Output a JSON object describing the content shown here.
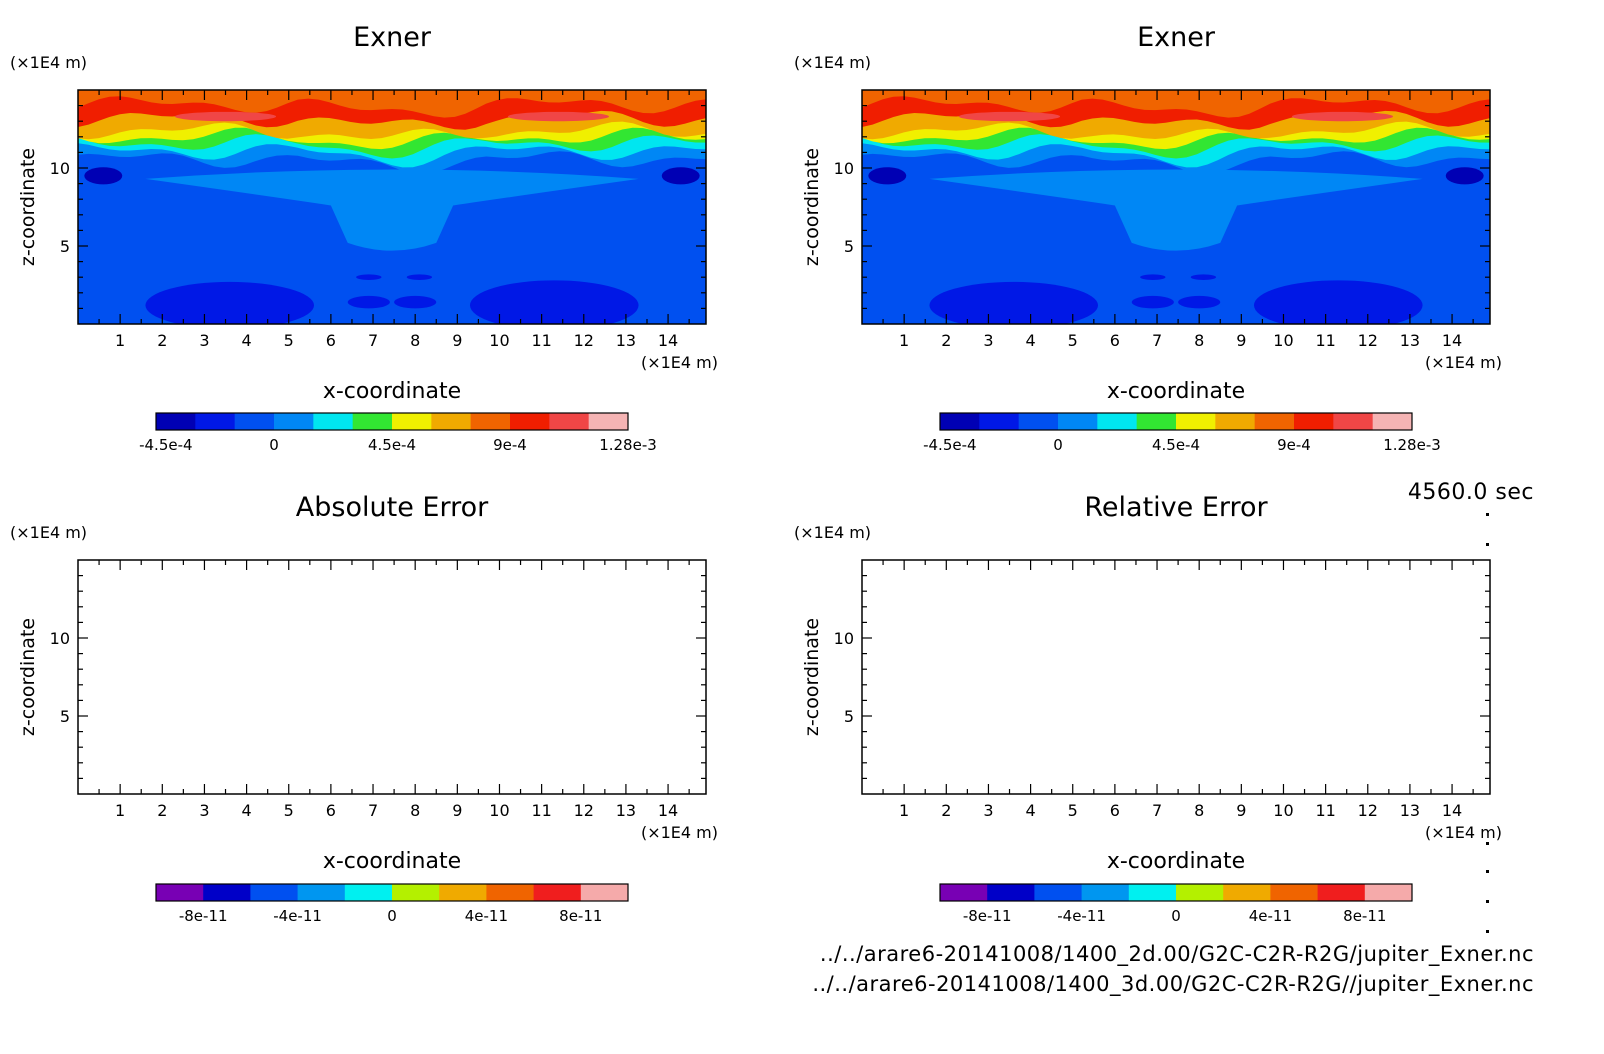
{
  "time_label": "4560.0 sec",
  "footer": {
    "line1": "../../arare6-20141008/1400_2d.00/G2C-C2R-R2G/jupiter_Exner.nc",
    "line2": "../../arare6-20141008/1400_3d.00/G2C-C2R-R2G//jupiter_Exner.nc"
  },
  "chart_data": [
    {
      "type": "heatmap",
      "title": "Exner",
      "xlabel": "x-coordinate",
      "ylabel": "z-coordinate",
      "x_unit": "(×1E4 m)",
      "y_unit": "(×1E4 m)",
      "xlim": [
        0,
        14.9
      ],
      "ylim": [
        0,
        15
      ],
      "xticks": [
        "1",
        "2",
        "3",
        "4",
        "5",
        "6",
        "7",
        "8",
        "9",
        "10",
        "11",
        "12",
        "13",
        "14"
      ],
      "yticks": [
        "5",
        "10"
      ],
      "colorbar": {
        "colors": [
          "#0000b4",
          "#0018e6",
          "#0050f0",
          "#0087f5",
          "#00e6f0",
          "#32e632",
          "#f0f000",
          "#f0aa00",
          "#f06400",
          "#f01e00",
          "#f04646",
          "#f5b4b4"
        ],
        "tick_labels": [
          "-4.5e-4",
          "0",
          "4.5e-4",
          "9e-4",
          "1.28e-3"
        ]
      },
      "contour_levels_approx": [
        {
          "z": 14.2,
          "color": "#f06400"
        },
        {
          "z": 13.0,
          "color": "#f01e00"
        },
        {
          "z": 12.2,
          "color": "#f0aa00"
        },
        {
          "z": 11.6,
          "color": "#f0f000"
        },
        {
          "z": 11.0,
          "color": "#32e632"
        },
        {
          "z": 10.4,
          "color": "#00e6f0"
        },
        {
          "z": 9.5,
          "color": "#0087f5"
        },
        {
          "z": 0,
          "color": "#0050f0"
        }
      ]
    },
    {
      "type": "heatmap",
      "title": "Exner",
      "xlabel": "x-coordinate",
      "ylabel": "z-coordinate",
      "x_unit": "(×1E4 m)",
      "y_unit": "(×1E4 m)",
      "xlim": [
        0,
        14.9
      ],
      "ylim": [
        0,
        15
      ],
      "xticks": [
        "1",
        "2",
        "3",
        "4",
        "5",
        "6",
        "7",
        "8",
        "9",
        "10",
        "11",
        "12",
        "13",
        "14"
      ],
      "yticks": [
        "5",
        "10"
      ],
      "colorbar": {
        "colors": [
          "#0000b4",
          "#0018e6",
          "#0050f0",
          "#0087f5",
          "#00e6f0",
          "#32e632",
          "#f0f000",
          "#f0aa00",
          "#f06400",
          "#f01e00",
          "#f04646",
          "#f5b4b4"
        ],
        "tick_labels": [
          "-4.5e-4",
          "0",
          "4.5e-4",
          "9e-4",
          "1.28e-3"
        ]
      }
    },
    {
      "type": "heatmap",
      "title": "Absolute Error",
      "xlabel": "x-coordinate",
      "ylabel": "z-coordinate",
      "x_unit": "(×1E4 m)",
      "y_unit": "(×1E4 m)",
      "xlim": [
        0,
        14.9
      ],
      "ylim": [
        0,
        15
      ],
      "xticks": [
        "1",
        "2",
        "3",
        "4",
        "5",
        "6",
        "7",
        "8",
        "9",
        "10",
        "11",
        "12",
        "13",
        "14"
      ],
      "yticks": [
        "5",
        "10"
      ],
      "empty": true,
      "colorbar": {
        "colors": [
          "#7800b4",
          "#0000c8",
          "#0050f0",
          "#0096f0",
          "#00f0f0",
          "#b4f000",
          "#f0aa00",
          "#f06400",
          "#f01e1e",
          "#f5aaaa"
        ],
        "tick_labels": [
          "-8e-11",
          "-4e-11",
          "0",
          "4e-11",
          "8e-11"
        ]
      }
    },
    {
      "type": "heatmap",
      "title": "Relative Error",
      "xlabel": "x-coordinate",
      "ylabel": "z-coordinate",
      "x_unit": "(×1E4 m)",
      "y_unit": "(×1E4 m)",
      "xlim": [
        0,
        14.9
      ],
      "ylim": [
        0,
        15
      ],
      "xticks": [
        "1",
        "2",
        "3",
        "4",
        "5",
        "6",
        "7",
        "8",
        "9",
        "10",
        "11",
        "12",
        "13",
        "14"
      ],
      "yticks": [
        "5",
        "10"
      ],
      "empty": true,
      "colorbar": {
        "colors": [
          "#7800b4",
          "#0000c8",
          "#0050f0",
          "#0096f0",
          "#00f0f0",
          "#b4f000",
          "#f0aa00",
          "#f06400",
          "#f01e1e",
          "#f5aaaa"
        ],
        "tick_labels": [
          "-8e-11",
          "-4e-11",
          "0",
          "4e-11",
          "8e-11"
        ]
      }
    }
  ]
}
